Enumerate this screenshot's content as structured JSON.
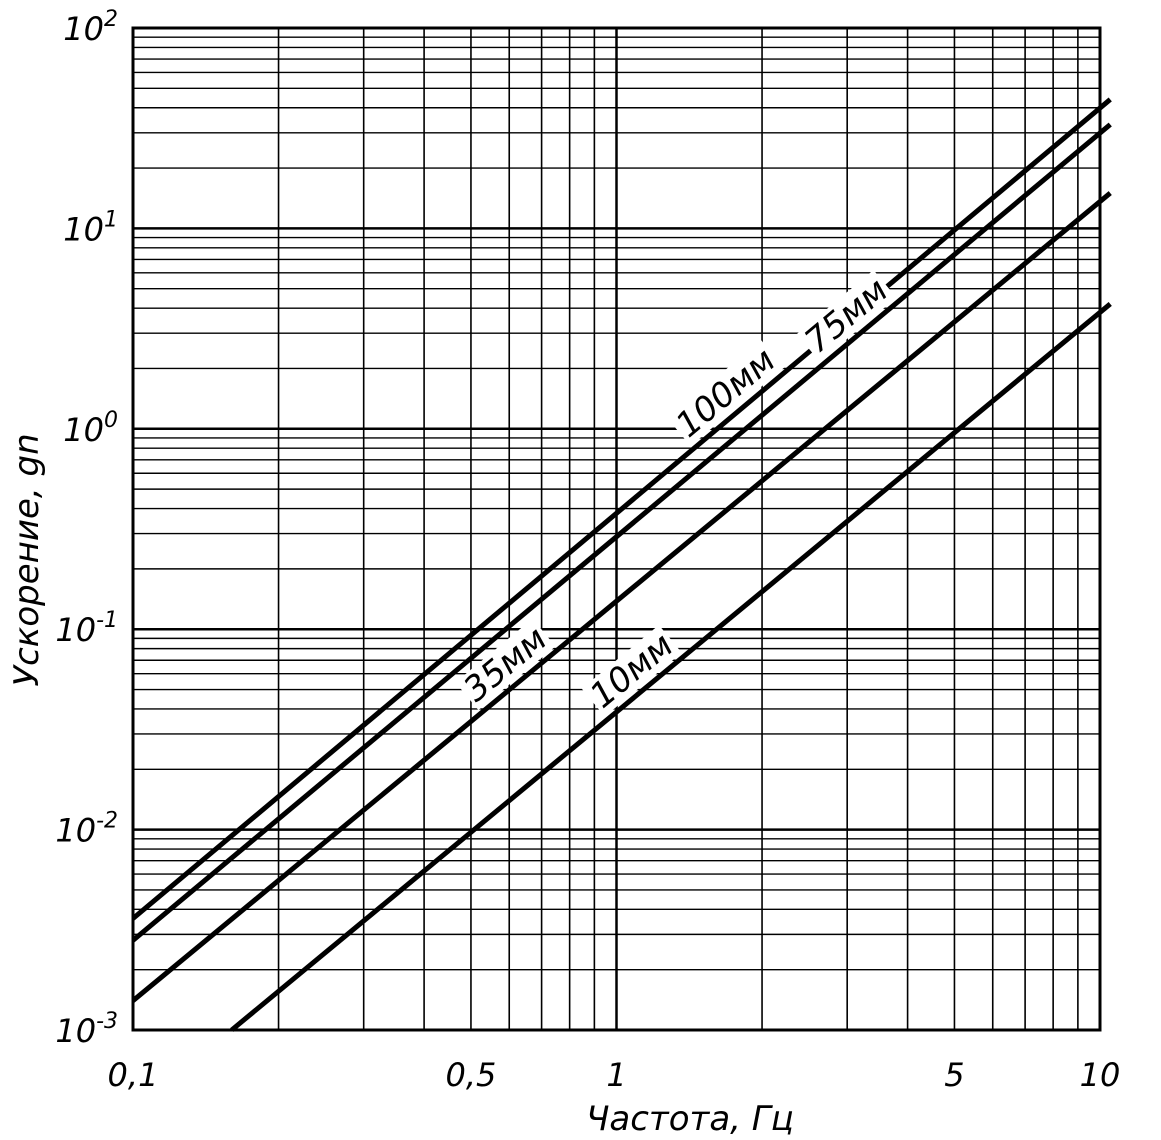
{
  "chart_data": {
    "type": "line",
    "scale": {
      "x": "log",
      "y": "log"
    },
    "xlabel": "Частота, Гц",
    "ylabel": "Ускорение, gn",
    "xlim": [
      0.1,
      10
    ],
    "ylim": [
      0.001,
      100
    ],
    "x_ticks": [
      {
        "value": 0.1,
        "label": "0,1"
      },
      {
        "value": 0.5,
        "label": "0,5"
      },
      {
        "value": 1,
        "label": "1"
      },
      {
        "value": 5,
        "label": "5"
      },
      {
        "value": 10,
        "label": "10"
      }
    ],
    "y_ticks": [
      {
        "value": 0.001,
        "base": "10",
        "exp": "-3"
      },
      {
        "value": 0.01,
        "base": "10",
        "exp": "-2"
      },
      {
        "value": 0.1,
        "base": "10",
        "exp": "-1"
      },
      {
        "value": 1,
        "base": "10",
        "exp": "0"
      },
      {
        "value": 10,
        "base": "10",
        "exp": "1"
      },
      {
        "value": 100,
        "base": "10",
        "exp": "2"
      }
    ],
    "series": [
      {
        "name": "100мм",
        "label": "100мм",
        "x": [
          0.1,
          10.5
        ],
        "y": [
          0.0036,
          44
        ],
        "label_at": 1.8
      },
      {
        "name": "75мм",
        "label": "75мм",
        "x": [
          0.1,
          10.5
        ],
        "y": [
          0.0028,
          33
        ],
        "label_at": 3.2
      },
      {
        "name": "35мм",
        "label": "35мм",
        "x": [
          0.1,
          10.5
        ],
        "y": [
          0.0014,
          15
        ],
        "label_at": 0.63
      },
      {
        "name": "10мм",
        "label": "10мм",
        "x": [
          0.16,
          10.5
        ],
        "y": [
          0.001,
          4.2
        ],
        "label_at": 1.15
      }
    ],
    "grid": true
  }
}
